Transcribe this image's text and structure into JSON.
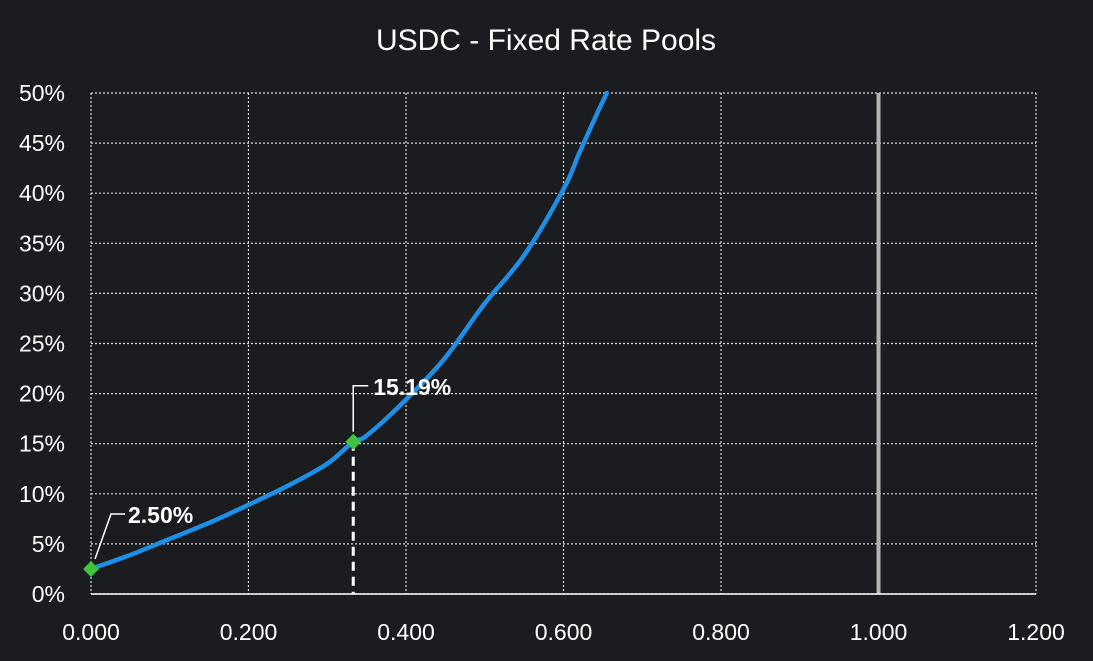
{
  "chart_data": {
    "type": "line",
    "title": "USDC - Fixed Rate Pools",
    "xlabel": "",
    "ylabel": "",
    "xlim": [
      0,
      1.2
    ],
    "ylim": [
      0,
      0.5
    ],
    "grid": true,
    "x_ticks": [
      "0.000",
      "0.200",
      "0.400",
      "0.600",
      "0.800",
      "1.000",
      "1.200"
    ],
    "y_ticks": [
      "0%",
      "5%",
      "10%",
      "15%",
      "20%",
      "25%",
      "30%",
      "35%",
      "40%",
      "45%",
      "50%"
    ],
    "series": [
      {
        "color": "#1e8fe6",
        "x": [
          0.0,
          0.05,
          0.1,
          0.15,
          0.2,
          0.25,
          0.3,
          0.333,
          0.35,
          0.4,
          0.45,
          0.5,
          0.55,
          0.6,
          0.62,
          0.64,
          0.655
        ],
        "y": [
          0.025,
          0.039,
          0.055,
          0.071,
          0.089,
          0.108,
          0.13,
          0.1519,
          0.158,
          0.194,
          0.236,
          0.29,
          0.338,
          0.404,
          0.44,
          0.475,
          0.5
        ]
      }
    ],
    "highlight_points": [
      {
        "x": 0.0,
        "y": 0.025,
        "label": "2.50%",
        "color": "#3fc23f"
      },
      {
        "x": 0.333,
        "y": 0.1519,
        "label": "15.19%",
        "color": "#3fc23f"
      }
    ],
    "reference_lines": [
      {
        "orientation": "vertical",
        "x": 1.0,
        "color": "#b3b3b3",
        "style": "solid"
      },
      {
        "orientation": "vertical",
        "x": 0.333,
        "y_to": 0.1519,
        "color": "#ffffff",
        "style": "dashed"
      }
    ]
  }
}
